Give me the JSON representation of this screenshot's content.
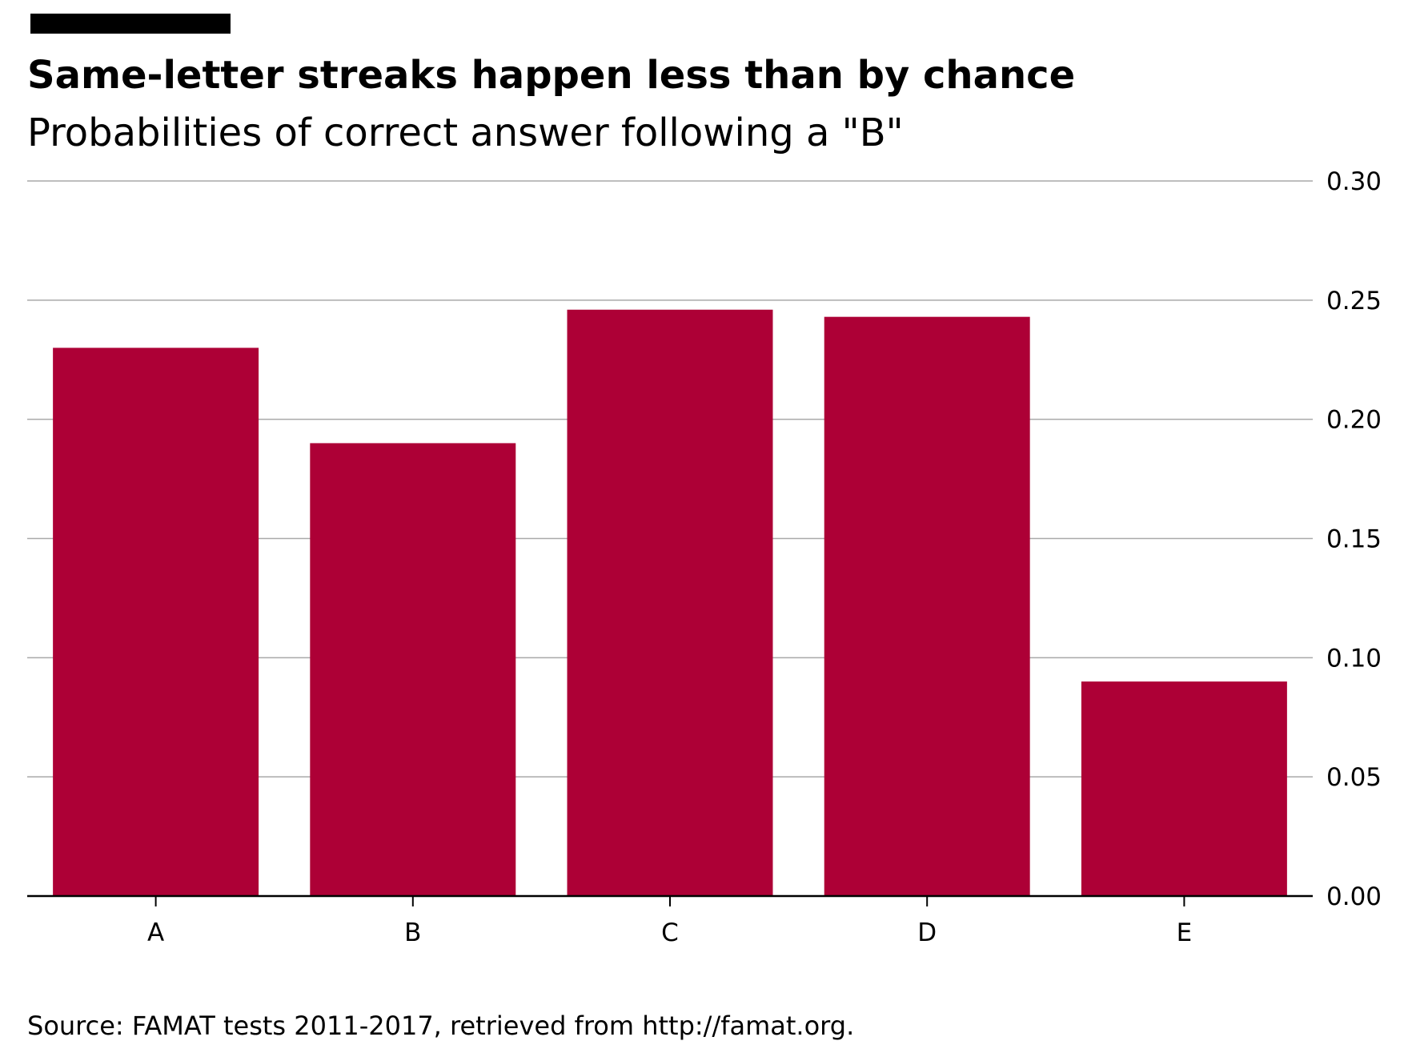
{
  "title": "Same-letter streaks happen less than by chance",
  "subtitle": "Probabilities of correct answer following a \"B\"",
  "source": "Source: FAMAT tests 2011-2017, retrieved from http://famat.org.",
  "colors": {
    "bar": "#ad0036",
    "grid": "#a9a9a9",
    "axis": "#000000",
    "accent_bar": "#000000"
  },
  "chart_data": {
    "type": "bar",
    "title": "Same-letter streaks happen less than by chance",
    "subtitle": "Probabilities of correct answer following a \"B\"",
    "xlabel": "",
    "ylabel": "",
    "categories": [
      "A",
      "B",
      "C",
      "D",
      "E"
    ],
    "values": [
      0.23,
      0.19,
      0.246,
      0.243,
      0.09
    ],
    "ylim": [
      0,
      0.3
    ],
    "yticks": [
      "0.00",
      "0.05",
      "0.10",
      "0.15",
      "0.20",
      "0.25",
      "0.30"
    ],
    "grid": true,
    "y_axis_side": "right",
    "legend": false
  }
}
